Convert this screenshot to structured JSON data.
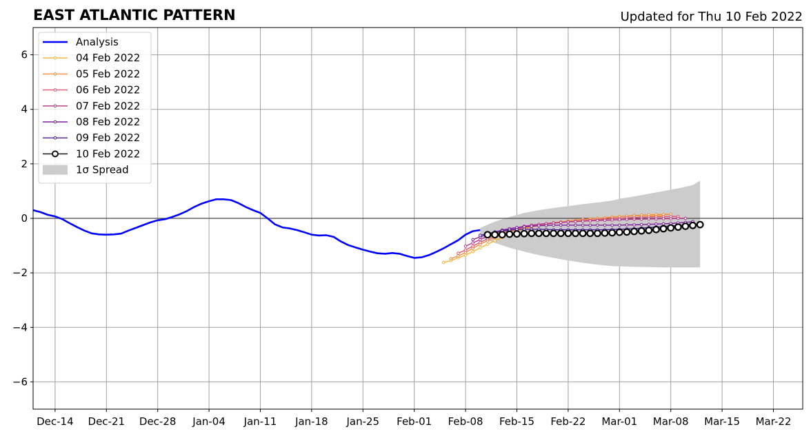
{
  "chart_data": {
    "type": "line",
    "title": "EAST ATLANTIC PATTERN",
    "subtitle": "Updated for Thu 10 Feb 2022",
    "xlabel": "",
    "ylabel": "",
    "x_axis": {
      "type": "date",
      "range": [
        "2021-12-11",
        "2022-03-26"
      ],
      "tick_dates": [
        "2021-12-14",
        "2021-12-21",
        "2021-12-28",
        "2022-01-04",
        "2022-01-11",
        "2022-01-18",
        "2022-01-25",
        "2022-02-01",
        "2022-02-08",
        "2022-02-15",
        "2022-02-22",
        "2022-03-01",
        "2022-03-08",
        "2022-03-15",
        "2022-03-22"
      ],
      "tick_labels": [
        "Dec-14",
        "Dec-21",
        "Dec-28",
        "Jan-04",
        "Jan-11",
        "Jan-18",
        "Jan-25",
        "Feb-01",
        "Feb-08",
        "Feb-15",
        "Feb-22",
        "Mar-01",
        "Mar-08",
        "Mar-15",
        "Mar-22"
      ]
    },
    "y_axis": {
      "range": [
        -7,
        7
      ],
      "ticks": [
        -6,
        -4,
        -2,
        0,
        2,
        4,
        6
      ],
      "tick_labels": [
        "−6",
        "−4",
        "−2",
        "0",
        "2",
        "4",
        "6"
      ]
    },
    "grid": true,
    "zero_line": true,
    "legend_position": "top-left",
    "series": [
      {
        "name": "Analysis",
        "color": "#0000ff",
        "style": "thick-line",
        "x": [
          "2021-12-11",
          "2021-12-12",
          "2021-12-13",
          "2021-12-14",
          "2021-12-15",
          "2021-12-16",
          "2021-12-17",
          "2021-12-18",
          "2021-12-19",
          "2021-12-20",
          "2021-12-21",
          "2021-12-22",
          "2021-12-23",
          "2021-12-24",
          "2021-12-25",
          "2021-12-26",
          "2021-12-27",
          "2021-12-28",
          "2021-12-29",
          "2021-12-30",
          "2021-12-31",
          "2022-01-01",
          "2022-01-02",
          "2022-01-03",
          "2022-01-04",
          "2022-01-05",
          "2022-01-06",
          "2022-01-07",
          "2022-01-08",
          "2022-01-09",
          "2022-01-10",
          "2022-01-11",
          "2022-01-12",
          "2022-01-13",
          "2022-01-14",
          "2022-01-15",
          "2022-01-16",
          "2022-01-17",
          "2022-01-18",
          "2022-01-19",
          "2022-01-20",
          "2022-01-21",
          "2022-01-22",
          "2022-01-23",
          "2022-01-24",
          "2022-01-25",
          "2022-01-26",
          "2022-01-27",
          "2022-01-28",
          "2022-01-29",
          "2022-01-30",
          "2022-01-31",
          "2022-02-01",
          "2022-02-02",
          "2022-02-03",
          "2022-02-04",
          "2022-02-05",
          "2022-02-06",
          "2022-02-07",
          "2022-02-08",
          "2022-02-09",
          "2022-02-10"
        ],
        "values": [
          0.3,
          0.23,
          0.13,
          0.07,
          -0.03,
          -0.18,
          -0.32,
          -0.45,
          -0.55,
          -0.59,
          -0.6,
          -0.59,
          -0.56,
          -0.45,
          -0.35,
          -0.25,
          -0.15,
          -0.07,
          -0.03,
          0.05,
          0.15,
          0.27,
          0.42,
          0.54,
          0.63,
          0.7,
          0.7,
          0.67,
          0.56,
          0.42,
          0.3,
          0.2,
          0.0,
          -0.22,
          -0.33,
          -0.37,
          -0.43,
          -0.51,
          -0.6,
          -0.63,
          -0.62,
          -0.68,
          -0.85,
          -0.98,
          -1.07,
          -1.15,
          -1.22,
          -1.28,
          -1.3,
          -1.27,
          -1.3,
          -1.38,
          -1.45,
          -1.43,
          -1.35,
          -1.23,
          -1.1,
          -0.95,
          -0.8,
          -0.6,
          -0.47,
          -0.43
        ]
      },
      {
        "name": "04 Feb 2022",
        "color": "#f9b235",
        "style": "thin-dots",
        "x": [
          "2022-02-05",
          "2022-02-06",
          "2022-02-07",
          "2022-02-08",
          "2022-02-09",
          "2022-02-10",
          "2022-02-11",
          "2022-02-12",
          "2022-02-13",
          "2022-02-14",
          "2022-02-15",
          "2022-02-16",
          "2022-02-17",
          "2022-02-18",
          "2022-02-19",
          "2022-02-20",
          "2022-02-21",
          "2022-02-22",
          "2022-02-23",
          "2022-02-24",
          "2022-02-25",
          "2022-02-26",
          "2022-02-27",
          "2022-02-28",
          "2022-03-01",
          "2022-03-02",
          "2022-03-03",
          "2022-03-04",
          "2022-03-05",
          "2022-03-06",
          "2022-03-07"
        ],
        "values": [
          -1.62,
          -1.55,
          -1.45,
          -1.35,
          -1.22,
          -1.08,
          -0.95,
          -0.82,
          -0.7,
          -0.58,
          -0.47,
          -0.38,
          -0.32,
          -0.27,
          -0.22,
          -0.18,
          -0.15,
          -0.12,
          -0.08,
          -0.05,
          -0.02,
          0.0,
          0.02,
          0.05,
          0.07,
          0.08,
          0.09,
          0.1,
          0.1,
          0.1,
          0.1
        ]
      },
      {
        "name": "05 Feb 2022",
        "color": "#f58a3a",
        "style": "thin-dots",
        "x": [
          "2022-02-06",
          "2022-02-07",
          "2022-02-08",
          "2022-02-09",
          "2022-02-10",
          "2022-02-11",
          "2022-02-12",
          "2022-02-13",
          "2022-02-14",
          "2022-02-15",
          "2022-02-16",
          "2022-02-17",
          "2022-02-18",
          "2022-02-19",
          "2022-02-20",
          "2022-02-21",
          "2022-02-22",
          "2022-02-23",
          "2022-02-24",
          "2022-02-25",
          "2022-02-26",
          "2022-02-27",
          "2022-02-28",
          "2022-03-01",
          "2022-03-02",
          "2022-03-03",
          "2022-03-04",
          "2022-03-05",
          "2022-03-06",
          "2022-03-07",
          "2022-03-08"
        ],
        "values": [
          -1.48,
          -1.38,
          -1.25,
          -1.1,
          -0.95,
          -0.82,
          -0.7,
          -0.6,
          -0.5,
          -0.42,
          -0.36,
          -0.3,
          -0.25,
          -0.2,
          -0.16,
          -0.13,
          -0.1,
          -0.07,
          -0.04,
          -0.02,
          0.0,
          0.02,
          0.04,
          0.06,
          0.08,
          0.1,
          0.12,
          0.13,
          0.14,
          0.14,
          0.15
        ]
      },
      {
        "name": "06 Feb 2022",
        "color": "#e05570",
        "style": "thin-dots",
        "x": [
          "2022-02-07",
          "2022-02-08",
          "2022-02-09",
          "2022-02-10",
          "2022-02-11",
          "2022-02-12",
          "2022-02-13",
          "2022-02-14",
          "2022-02-15",
          "2022-02-16",
          "2022-02-17",
          "2022-02-18",
          "2022-02-19",
          "2022-02-20",
          "2022-02-21",
          "2022-02-22",
          "2022-02-23",
          "2022-02-24",
          "2022-02-25",
          "2022-02-26",
          "2022-02-27",
          "2022-02-28",
          "2022-03-01",
          "2022-03-02",
          "2022-03-03",
          "2022-03-04",
          "2022-03-05",
          "2022-03-06",
          "2022-03-07",
          "2022-03-08",
          "2022-03-09"
        ],
        "values": [
          -1.28,
          -1.16,
          -1.02,
          -0.88,
          -0.75,
          -0.63,
          -0.53,
          -0.45,
          -0.38,
          -0.32,
          -0.28,
          -0.24,
          -0.21,
          -0.18,
          -0.15,
          -0.13,
          -0.11,
          -0.09,
          -0.07,
          -0.05,
          -0.03,
          -0.01,
          0.0,
          0.02,
          0.03,
          0.04,
          0.05,
          0.06,
          0.06,
          0.07,
          0.07
        ]
      },
      {
        "name": "07 Feb 2022",
        "color": "#b8328a",
        "style": "thin-dots",
        "x": [
          "2022-02-08",
          "2022-02-09",
          "2022-02-10",
          "2022-02-11",
          "2022-02-12",
          "2022-02-13",
          "2022-02-14",
          "2022-02-15",
          "2022-02-16",
          "2022-02-17",
          "2022-02-18",
          "2022-02-19",
          "2022-02-20",
          "2022-02-21",
          "2022-02-22",
          "2022-02-23",
          "2022-02-24",
          "2022-02-25",
          "2022-02-26",
          "2022-02-27",
          "2022-02-28",
          "2022-03-01",
          "2022-03-02",
          "2022-03-03",
          "2022-03-04",
          "2022-03-05",
          "2022-03-06",
          "2022-03-07",
          "2022-03-08",
          "2022-03-09",
          "2022-03-10"
        ],
        "values": [
          -1.02,
          -0.9,
          -0.78,
          -0.66,
          -0.56,
          -0.47,
          -0.4,
          -0.34,
          -0.29,
          -0.25,
          -0.22,
          -0.19,
          -0.17,
          -0.15,
          -0.13,
          -0.12,
          -0.1,
          -0.09,
          -0.08,
          -0.07,
          -0.06,
          -0.05,
          -0.04,
          -0.03,
          -0.03,
          -0.02,
          -0.02,
          -0.01,
          -0.01,
          0.0,
          0.0
        ]
      },
      {
        "name": "08 Feb 2022",
        "color": "#7d1e9c",
        "style": "thin-dots",
        "x": [
          "2022-02-09",
          "2022-02-10",
          "2022-02-11",
          "2022-02-12",
          "2022-02-13",
          "2022-02-14",
          "2022-02-15",
          "2022-02-16",
          "2022-02-17",
          "2022-02-18",
          "2022-02-19",
          "2022-02-20",
          "2022-02-21",
          "2022-02-22",
          "2022-02-23",
          "2022-02-24",
          "2022-02-25",
          "2022-02-26",
          "2022-02-27",
          "2022-02-28",
          "2022-03-01",
          "2022-03-02",
          "2022-03-03",
          "2022-03-04",
          "2022-03-05",
          "2022-03-06",
          "2022-03-07",
          "2022-03-08",
          "2022-03-09",
          "2022-03-10",
          "2022-03-11"
        ],
        "values": [
          -0.78,
          -0.68,
          -0.58,
          -0.5,
          -0.43,
          -0.38,
          -0.34,
          -0.31,
          -0.29,
          -0.27,
          -0.26,
          -0.25,
          -0.25,
          -0.25,
          -0.25,
          -0.25,
          -0.25,
          -0.25,
          -0.25,
          -0.25,
          -0.25,
          -0.24,
          -0.24,
          -0.23,
          -0.22,
          -0.21,
          -0.2,
          -0.19,
          -0.17,
          -0.15,
          -0.12
        ]
      },
      {
        "name": "09 Feb 2022",
        "color": "#4a1a9c",
        "style": "thin-dots",
        "x": [
          "2022-02-10",
          "2022-02-11",
          "2022-02-12",
          "2022-02-13",
          "2022-02-14",
          "2022-02-15",
          "2022-02-16",
          "2022-02-17",
          "2022-02-18",
          "2022-02-19",
          "2022-02-20",
          "2022-02-21",
          "2022-02-22",
          "2022-02-23",
          "2022-02-24",
          "2022-02-25",
          "2022-02-26",
          "2022-02-27",
          "2022-02-28",
          "2022-03-01",
          "2022-03-02",
          "2022-03-03",
          "2022-03-04",
          "2022-03-05",
          "2022-03-06",
          "2022-03-07",
          "2022-03-08",
          "2022-03-09",
          "2022-03-10",
          "2022-03-11",
          "2022-03-12"
        ],
        "values": [
          -0.62,
          -0.56,
          -0.5,
          -0.46,
          -0.43,
          -0.41,
          -0.4,
          -0.4,
          -0.4,
          -0.41,
          -0.42,
          -0.42,
          -0.42,
          -0.42,
          -0.42,
          -0.42,
          -0.42,
          -0.42,
          -0.41,
          -0.4,
          -0.39,
          -0.38,
          -0.36,
          -0.34,
          -0.32,
          -0.3,
          -0.28,
          -0.26,
          -0.24,
          -0.22,
          -0.2
        ]
      },
      {
        "name": "10 Feb 2022",
        "color": "#000000",
        "style": "open-circles",
        "x": [
          "2022-02-11",
          "2022-02-12",
          "2022-02-13",
          "2022-02-14",
          "2022-02-15",
          "2022-02-16",
          "2022-02-17",
          "2022-02-18",
          "2022-02-19",
          "2022-02-20",
          "2022-02-21",
          "2022-02-22",
          "2022-02-23",
          "2022-02-24",
          "2022-02-25",
          "2022-02-26",
          "2022-02-27",
          "2022-02-28",
          "2022-03-01",
          "2022-03-02",
          "2022-03-03",
          "2022-03-04",
          "2022-03-05",
          "2022-03-06",
          "2022-03-07",
          "2022-03-08",
          "2022-03-09",
          "2022-03-10",
          "2022-03-11",
          "2022-03-12"
        ],
        "values": [
          -0.6,
          -0.6,
          -0.6,
          -0.58,
          -0.57,
          -0.56,
          -0.55,
          -0.55,
          -0.55,
          -0.55,
          -0.55,
          -0.55,
          -0.55,
          -0.55,
          -0.55,
          -0.55,
          -0.54,
          -0.53,
          -0.51,
          -0.5,
          -0.48,
          -0.46,
          -0.44,
          -0.41,
          -0.38,
          -0.35,
          -0.32,
          -0.29,
          -0.26,
          -0.23
        ]
      }
    ],
    "spread": {
      "name": "1σ Spread",
      "color": "#cccccc",
      "x": [
        "2022-02-10",
        "2022-02-12",
        "2022-02-14",
        "2022-02-16",
        "2022-02-18",
        "2022-02-20",
        "2022-02-22",
        "2022-02-24",
        "2022-02-26",
        "2022-02-28",
        "2022-03-01",
        "2022-03-03",
        "2022-03-05",
        "2022-03-07",
        "2022-03-09",
        "2022-03-11",
        "2022-03-12"
      ],
      "upper": [
        -0.35,
        -0.12,
        0.05,
        0.2,
        0.3,
        0.38,
        0.45,
        0.52,
        0.58,
        0.65,
        0.72,
        0.8,
        0.9,
        1.0,
        1.1,
        1.22,
        1.38
      ],
      "lower": [
        -0.7,
        -0.9,
        -1.08,
        -1.22,
        -1.35,
        -1.45,
        -1.55,
        -1.63,
        -1.7,
        -1.75,
        -1.76,
        -1.78,
        -1.79,
        -1.8,
        -1.8,
        -1.8,
        -1.8
      ]
    }
  }
}
